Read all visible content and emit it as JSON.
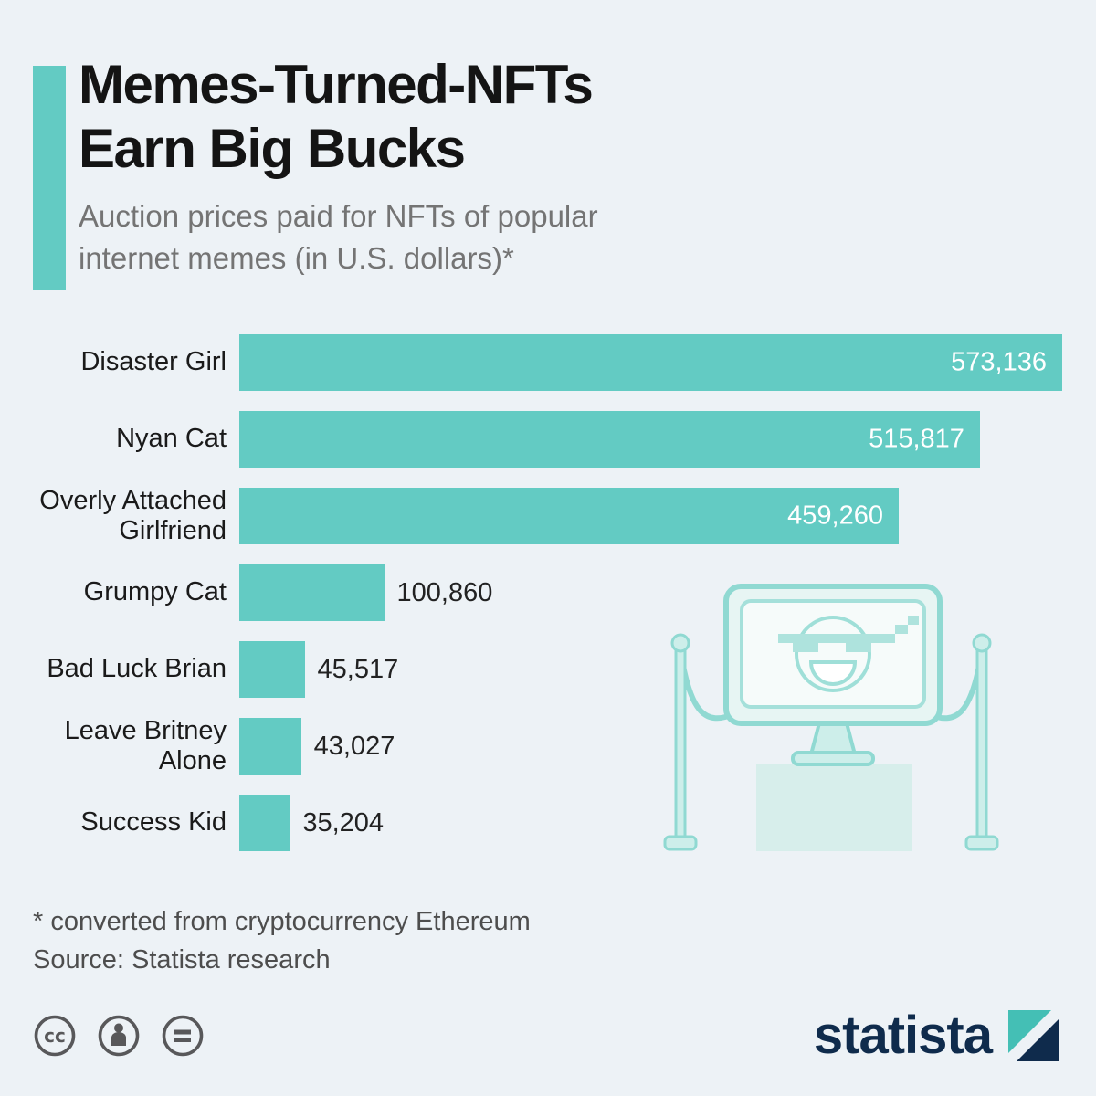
{
  "meta": {
    "background_color": "#edf2f6",
    "accent_color": "#63cbc3",
    "navy_color": "#0f2b4c"
  },
  "header": {
    "title_line1": "Memes-Turned-NFTs",
    "title_line2": "Earn Big Bucks",
    "subtitle_line1": "Auction prices paid for NFTs of popular",
    "subtitle_line2": "internet memes (in U.S. dollars)*"
  },
  "chart_data": {
    "type": "bar",
    "orientation": "horizontal",
    "title": "Memes-Turned-NFTs Earn Big Bucks",
    "subtitle": "Auction prices paid for NFTs of popular internet memes (in U.S. dollars)*",
    "categories": [
      "Disaster Girl",
      "Nyan Cat",
      "Overly Attached Girlfriend",
      "Grumpy Cat",
      "Bad Luck Brian",
      "Leave Britney Alone",
      "Success Kid"
    ],
    "values": [
      573136,
      515817,
      459260,
      100860,
      45517,
      43027,
      35204
    ],
    "value_labels": [
      "573,136",
      "515,817",
      "459,260",
      "100,860",
      "45,517",
      "43,027",
      "35,204"
    ],
    "unit": "USD",
    "xlim": [
      0,
      573136
    ],
    "bar_color": "#63cbc3",
    "grid": false,
    "legend": false
  },
  "illustration": {
    "name": "meme-monitor-illustration",
    "description": "Monitor showing meme smiley with pixel sunglasses on museum pedestal with rope barriers"
  },
  "footer": {
    "footnote": "* converted from cryptocurrency Ethereum",
    "source": "Source: Statista research",
    "license_icons": [
      "cc-icon",
      "attribution-icon",
      "equal-icon"
    ],
    "logo_text": "statista"
  }
}
